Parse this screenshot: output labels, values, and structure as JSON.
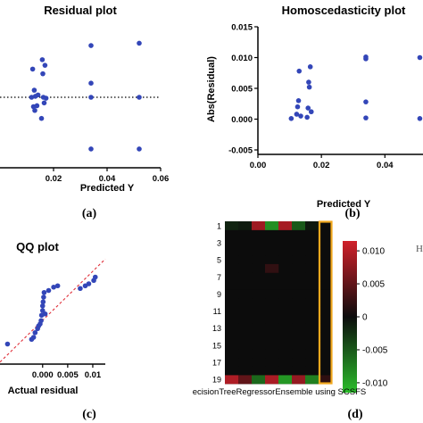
{
  "colors": {
    "point": "#3346b8",
    "line": "#000000",
    "qqline": "#e0303a",
    "frame": "#f2a81d",
    "red": "#d0202a",
    "green": "#2bbd2b",
    "dark": "#0c0c0c"
  },
  "chart_data": [
    {
      "type": "scatter",
      "title": "Residual plot",
      "xlabel": "Predicted Y",
      "ylabel": "",
      "xticks": [
        "0.02",
        "0.04",
        "0.06"
      ],
      "xlim": [
        0.0,
        0.06
      ],
      "ylim": [
        -0.015,
        0.015
      ],
      "reference_line": {
        "y": 0.0,
        "style": "dotted"
      },
      "panel_label": "(a)",
      "x": [
        0.0118,
        0.0122,
        0.0125,
        0.0128,
        0.013,
        0.0132,
        0.0138,
        0.0142,
        0.0155,
        0.0158,
        0.016,
        0.0162,
        0.0165,
        0.0168,
        0.0172,
        0.034,
        0.034,
        0.034,
        0.034,
        0.052,
        0.052,
        0.052
      ],
      "y": [
        0.0,
        0.006,
        -0.002,
        0.0015,
        -0.0028,
        0.0002,
        -0.0018,
        0.0005,
        -0.0045,
        0.008,
        0.005,
        0.0,
        -0.0012,
        0.0068,
        -0.0002,
        0.011,
        0.003,
        0.0,
        -0.011,
        0.0115,
        0.0,
        -0.011
      ]
    },
    {
      "type": "scatter",
      "title": "Homoscedasticity plot",
      "xlabel": "Predicted Y",
      "ylabel": "Abs(Residual)",
      "xticks": [
        "0.00",
        "0.02",
        "0.04"
      ],
      "yticks": [
        "-0.005",
        "0.000",
        "0.005",
        "0.010",
        "0.015"
      ],
      "xlim": [
        0.0,
        0.052
      ],
      "ylim": [
        -0.005,
        0.015
      ],
      "panel_label": "(b)",
      "x": [
        0.0105,
        0.0122,
        0.0125,
        0.0128,
        0.013,
        0.0135,
        0.0155,
        0.0158,
        0.016,
        0.0162,
        0.0165,
        0.0168,
        0.034,
        0.034,
        0.034,
        0.034,
        0.051,
        0.051
      ],
      "y": [
        0.0001,
        0.0008,
        0.002,
        0.003,
        0.0078,
        0.0005,
        0.0003,
        0.0018,
        0.006,
        0.0052,
        0.0085,
        0.0012,
        0.0101,
        0.0098,
        0.0028,
        0.0002,
        0.01,
        0.0001
      ]
    },
    {
      "type": "scatter",
      "title": "QQ plot",
      "xlabel": "Actual residual",
      "ylabel": "",
      "xticks": [
        "0.000",
        "0.005",
        "0.01"
      ],
      "xlim": [
        -0.0085,
        0.0125
      ],
      "ylim": [
        -0.0065,
        0.0095
      ],
      "reference_line": {
        "from": [
          -0.0085,
          -0.0062
        ],
        "to": [
          0.0125,
          0.0092
        ],
        "style": "dashed"
      },
      "panel_label": "(c)",
      "x": [
        -0.007,
        -0.0022,
        -0.0018,
        -0.0015,
        -0.001,
        -0.0008,
        -0.0005,
        -0.0003,
        -0.0002,
        0.0,
        0.0,
        0.0001,
        0.0002,
        0.0003,
        0.0005,
        0.0012,
        0.0022,
        0.003,
        0.0075,
        0.0085,
        0.0092,
        0.0102,
        0.0105
      ],
      "y": [
        -0.0035,
        -0.0028,
        -0.0025,
        -0.0018,
        -0.0012,
        -0.0008,
        -0.0005,
        0.0,
        0.0008,
        0.0015,
        0.0022,
        0.0028,
        0.0035,
        0.0042,
        0.001,
        0.0045,
        0.005,
        0.0052,
        0.0048,
        0.0052,
        0.0055,
        0.006,
        0.0065
      ]
    },
    {
      "type": "heatmap",
      "xlabel": "ecisionTreeRegressorEnsemble using SCSFS",
      "row_labels": [
        "1",
        "3",
        "5",
        "7",
        "9",
        "11",
        "13",
        "15",
        "17",
        "19"
      ],
      "rows": 19,
      "cols": 8,
      "panel_label": "(d)",
      "colorbar": {
        "ticks": [
          "0.010",
          "0.005",
          "0",
          "-0.005",
          "-0.010"
        ],
        "values": [
          0.01,
          0.005,
          0.0,
          -0.005,
          -0.01
        ],
        "range": [
          -0.0115,
          0.0115
        ]
      },
      "cells": [
        {
          "row": 1,
          "col": 1,
          "value": -0.0015
        },
        {
          "row": 1,
          "col": 2,
          "value": -0.001
        },
        {
          "row": 1,
          "col": 3,
          "value": 0.0085
        },
        {
          "row": 1,
          "col": 4,
          "value": -0.0085
        },
        {
          "row": 1,
          "col": 5,
          "value": 0.009
        },
        {
          "row": 1,
          "col": 6,
          "value": -0.005
        },
        {
          "row": 1,
          "col": 7,
          "value": -0.0008
        },
        {
          "row": 6,
          "col": 4,
          "value": 0.0022
        },
        {
          "row": 19,
          "col": 1,
          "value": 0.0095
        },
        {
          "row": 19,
          "col": 2,
          "value": 0.005
        },
        {
          "row": 19,
          "col": 3,
          "value": -0.006
        },
        {
          "row": 19,
          "col": 4,
          "value": 0.0092
        },
        {
          "row": 19,
          "col": 5,
          "value": -0.009
        },
        {
          "row": 19,
          "col": 6,
          "value": 0.008
        },
        {
          "row": 19,
          "col": 7,
          "value": -0.0075
        },
        {
          "row": 19,
          "col": 8,
          "value": 0.002
        }
      ]
    }
  ],
  "edge_text": "H"
}
